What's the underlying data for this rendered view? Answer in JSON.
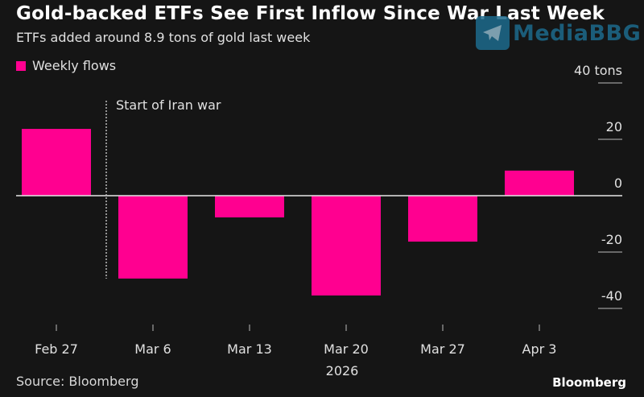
{
  "header": {
    "title": "Gold-backed ETFs See First Inflow Since War Last Week",
    "subtitle": "ETFs added around 8.9 tons of gold last week"
  },
  "watermark": {
    "label": "MediaBBG",
    "icon": "telegram-icon"
  },
  "footer": {
    "source": "Source: Bloomberg",
    "logo": "Bloomberg"
  },
  "colors": {
    "bar": "#ff0090",
    "background": "#151515",
    "zero_line": "#e6e6e6",
    "tick": "#bbbbbb"
  },
  "chart_data": {
    "type": "bar",
    "title": "Gold-backed ETFs See First Inflow Since War Last Week",
    "subtitle": "ETFs added around 8.9 tons of gold last week",
    "legend": [
      {
        "name": "Weekly flows",
        "color": "#ff0090"
      }
    ],
    "legend_position": "top-left",
    "categories": [
      "Feb 27",
      "Mar 6",
      "Mar 13",
      "Mar 20",
      "Mar 27",
      "Apr 3"
    ],
    "series": [
      {
        "name": "Weekly flows",
        "values": [
          23.7,
          -29.4,
          -7.7,
          -35.4,
          -16.3,
          8.9
        ]
      }
    ],
    "xlabel": "2026",
    "ylabel": "tons",
    "ylim": [
      -45,
      40
    ],
    "yticks": [
      {
        "value": 40,
        "label": "40 tons"
      },
      {
        "value": 20,
        "label": "20"
      },
      {
        "value": 0,
        "label": "0"
      },
      {
        "value": -20,
        "label": "-20"
      },
      {
        "value": -40,
        "label": "-40"
      }
    ],
    "annotations": [
      {
        "text": "Start of Iran war",
        "between": [
          "Feb 27",
          "Mar 6"
        ],
        "style": "dotted-vertical-line"
      }
    ],
    "grid": false,
    "source": "Source: Bloomberg"
  }
}
